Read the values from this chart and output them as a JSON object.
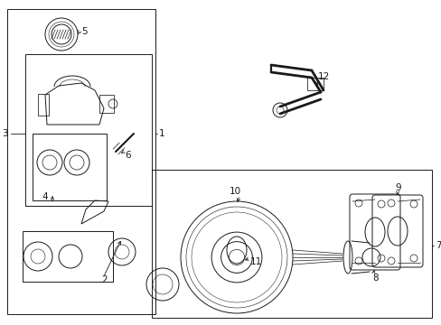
{
  "bg_color": "#ffffff",
  "line_color": "#1a1a1a",
  "fig_width": 4.89,
  "fig_height": 3.6,
  "dpi": 100,
  "lw": 0.7
}
